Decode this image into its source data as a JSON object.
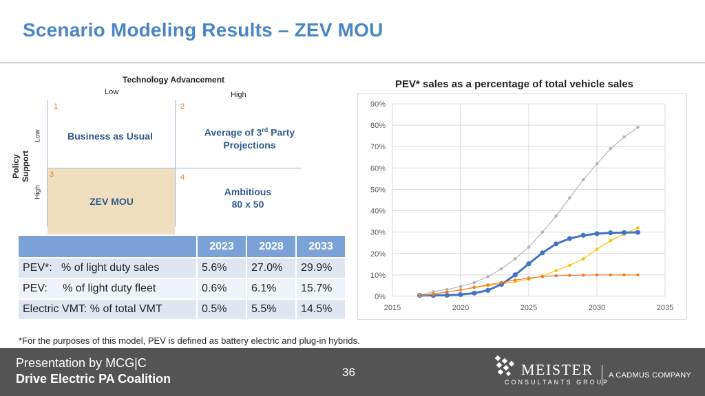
{
  "slide": {
    "title": "Scenario Modeling Results – ZEV MOU"
  },
  "matrix": {
    "header": "Technology Advancement",
    "col_low": "Low",
    "col_high": "High",
    "row_axis": "Policy Support",
    "row_low": "Low",
    "row_high": "High",
    "cells": [
      {
        "number": "1",
        "label": "Business as Usual"
      },
      {
        "number": "2",
        "label_main": "Average of 3",
        "label_sup": "rd",
        "label_rest": " Party",
        "label_line2": "Projections"
      },
      {
        "number": "3",
        "label": "ZEV MOU"
      },
      {
        "number": "4",
        "label_line1": "Ambitious",
        "label_line2": "80 x 50"
      }
    ],
    "highlight_color": "#efdfbe"
  },
  "table": {
    "headers": [
      "",
      "2023",
      "2028",
      "2033"
    ],
    "rows": [
      {
        "label": "PEV*:   % of light duty sales",
        "values": [
          "5.6%",
          "27.0%",
          "29.9%"
        ]
      },
      {
        "label": "PEV:     % of light duty fleet",
        "values": [
          "0.6%",
          "6.1%",
          "15.7%"
        ]
      },
      {
        "label": "Electric VMT: % of total VMT",
        "values": [
          "0.5%",
          "5.5%",
          "14.5%"
        ]
      }
    ]
  },
  "chart_data": {
    "type": "line",
    "title": "PEV* sales as a percentage of total vehicle sales",
    "xlabel": "",
    "ylabel": "",
    "xlim": [
      2015,
      2035
    ],
    "ylim": [
      0,
      90
    ],
    "xticks": [
      2015,
      2020,
      2025,
      2030,
      2035
    ],
    "yticks": [
      0,
      10,
      20,
      30,
      40,
      50,
      60,
      70,
      80,
      90
    ],
    "y_format": "percent",
    "grid": true,
    "legend": "none",
    "series": [
      {
        "name": "Ambitious 80 x 50",
        "color": "#b4b4b4",
        "x": [
          2017,
          2018,
          2019,
          2020,
          2021,
          2022,
          2023,
          2024,
          2025,
          2026,
          2027,
          2028,
          2029,
          2030,
          2031,
          2032,
          2033
        ],
        "values": [
          0.5,
          2.2,
          3.2,
          4.6,
          6.4,
          9.2,
          12.8,
          17.5,
          23,
          30,
          37.5,
          46,
          54.5,
          62,
          69,
          74.5,
          79
        ]
      },
      {
        "name": "Average of 3rd Party Projections",
        "color": "#ffc000",
        "x": [
          2017,
          2018,
          2019,
          2020,
          2021,
          2022,
          2023,
          2024,
          2025,
          2026,
          2027,
          2028,
          2029,
          2030,
          2031,
          2032,
          2033
        ],
        "values": [
          0.5,
          1.2,
          2,
          3,
          4,
          5,
          5.8,
          6.8,
          8,
          9.5,
          12,
          14.5,
          17.5,
          22,
          26,
          29,
          32
        ]
      },
      {
        "name": "ZEV MOU",
        "color": "#4472c4",
        "x": [
          2017,
          2018,
          2019,
          2020,
          2021,
          2022,
          2023,
          2024,
          2025,
          2026,
          2027,
          2028,
          2029,
          2030,
          2031,
          2032,
          2033
        ],
        "values": [
          0.4,
          0.4,
          0.5,
          0.8,
          1.5,
          2.8,
          5.6,
          10,
          15.2,
          20.3,
          24.5,
          27,
          28.5,
          29.3,
          29.7,
          29.8,
          29.9
        ]
      },
      {
        "name": "Business as Usual",
        "color": "#ed7d31",
        "x": [
          2017,
          2018,
          2019,
          2020,
          2021,
          2022,
          2023,
          2024,
          2025,
          2026,
          2027,
          2028,
          2029,
          2030,
          2031,
          2032,
          2033
        ],
        "values": [
          0.3,
          1,
          2,
          3,
          4.2,
          5.3,
          6.5,
          7.6,
          8.5,
          9.2,
          9.6,
          9.8,
          9.9,
          10,
          10,
          10,
          10
        ]
      }
    ]
  },
  "footnote": "*For the purposes of this model, PEV is defined as battery electric and plug-in hybrids.",
  "footer": {
    "presentation_by": "Presentation by MCG|C",
    "organization": "Drive Electric PA Coalition",
    "page_number": "36",
    "logo_name": "MEISTER",
    "logo_sub": "CONSULTANTS GROUP",
    "logo_cadmus": "A CADMUS COMPANY",
    "background_color": "#545454"
  }
}
